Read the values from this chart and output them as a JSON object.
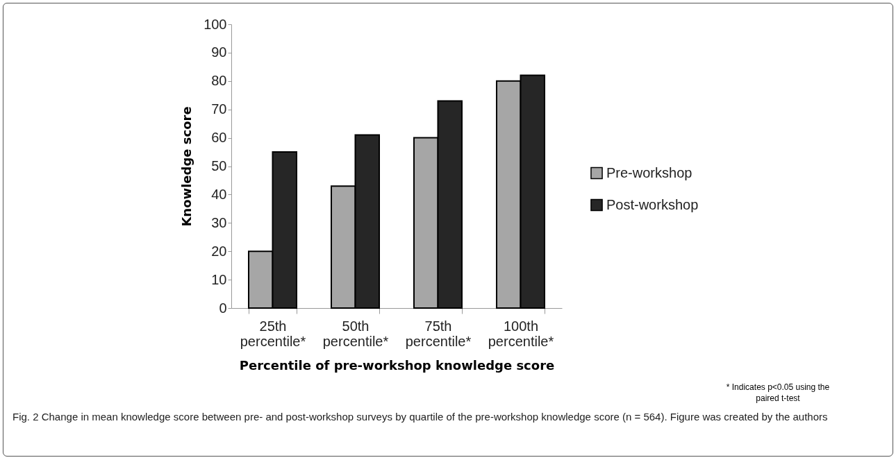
{
  "chart_data": {
    "type": "bar",
    "xlabel": "Percentile of pre-workshop knowledge score",
    "ylabel": "Knowledge score",
    "categories": [
      "25th percentile*",
      "50th percentile*",
      "75th percentile*",
      "100th percentile*"
    ],
    "series": [
      {
        "name": "Pre-workshop",
        "color": "#a6a6a6",
        "values": [
          20,
          43,
          60,
          80
        ]
      },
      {
        "name": "Post-workshop",
        "color": "#262626",
        "values": [
          55,
          61,
          73,
          82
        ]
      }
    ],
    "ylim": [
      0,
      100
    ],
    "yticks": [
      0,
      10,
      20,
      30,
      40,
      50,
      60,
      70,
      80,
      90,
      100
    ],
    "grid": false,
    "legend": "right",
    "annotations": [
      "* Indicates p<0.05 using the paired t-test",
      "Fig. 2 Change in mean knowledge score between pre- and post-workshop surveys by quartile of the pre-workshop knowledge score (n = 564). Figure was created by the authors"
    ]
  }
}
